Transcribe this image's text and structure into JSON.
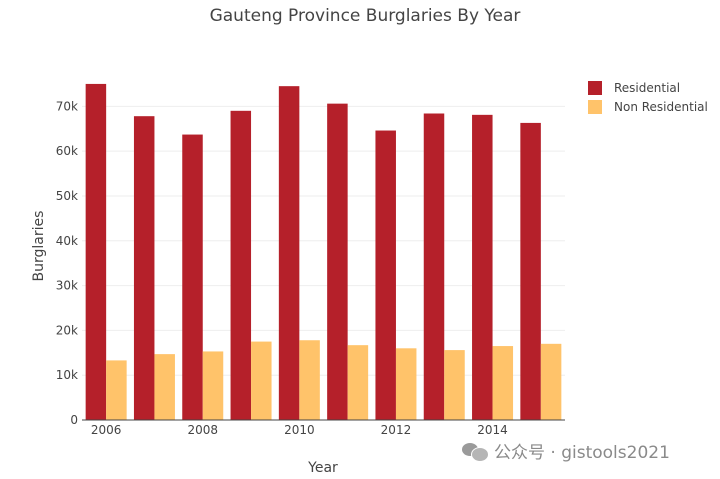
{
  "title": "Gauteng Province Burglaries By Year",
  "watermark": {
    "icon": "wechat-icon",
    "text": "公众号 · gistools2021"
  },
  "chart_data": {
    "type": "bar",
    "mode": "grouped",
    "title": "Gauteng Province Burglaries By Year",
    "xlabel": "Year",
    "ylabel": "Burglaries",
    "categories": [
      "2006",
      "2007",
      "2008",
      "2009",
      "2010",
      "2011",
      "2012",
      "2013",
      "2014",
      "2015"
    ],
    "x_tick_labels": [
      "2006",
      "2008",
      "2010",
      "2012",
      "2014"
    ],
    "y_ticks": [
      0,
      10000,
      20000,
      30000,
      40000,
      50000,
      60000,
      70000
    ],
    "y_tick_labels": [
      "0",
      "10k",
      "20k",
      "30k",
      "40k",
      "50k",
      "60k",
      "70k"
    ],
    "ylim": [
      0,
      79000
    ],
    "grid": true,
    "legend_position": "top-right",
    "series": [
      {
        "name": "Residential",
        "color": "#b5202a",
        "values": [
          75000,
          67800,
          63700,
          69000,
          74500,
          70600,
          64600,
          68400,
          68100,
          66300
        ]
      },
      {
        "name": "Non Residential",
        "color": "#ffc36a",
        "values": [
          13300,
          14700,
          15300,
          17500,
          17800,
          16700,
          16000,
          15600,
          16500,
          17000
        ]
      }
    ]
  }
}
